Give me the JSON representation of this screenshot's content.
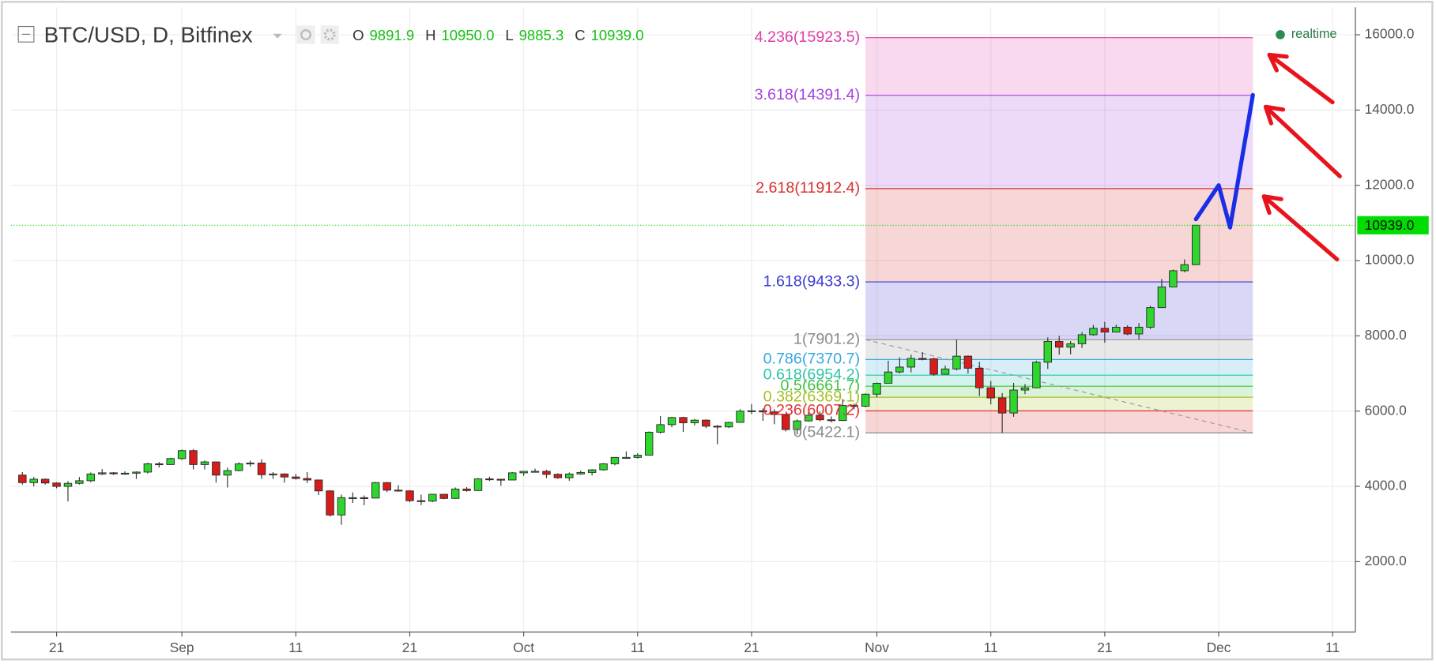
{
  "header": {
    "symbol": "BTC/USD, D, Bitfinex",
    "ohlc": [
      {
        "key": "O",
        "text": "9891.9"
      },
      {
        "key": "H",
        "text": "10950.0"
      },
      {
        "key": "L",
        "text": "9885.3"
      },
      {
        "key": "C",
        "text": "10939.0"
      }
    ],
    "status": "realtime"
  },
  "chart_data": {
    "type": "candlestick",
    "x": [
      "Aug 18",
      "Aug 19",
      "Aug 20",
      "Aug 21",
      "Aug 22",
      "Aug 23",
      "Aug 24",
      "Aug 25",
      "Aug 26",
      "Aug 27",
      "Aug 28",
      "Aug 29",
      "Aug 30",
      "Aug 31",
      "Sep 1",
      "Sep 2",
      "Sep 3",
      "Sep 4",
      "Sep 5",
      "Sep 6",
      "Sep 7",
      "Sep 8",
      "Sep 9",
      "Sep 10",
      "Sep 11",
      "Sep 12",
      "Sep 13",
      "Sep 14",
      "Sep 15",
      "Sep 16",
      "Sep 17",
      "Sep 18",
      "Sep 19",
      "Sep 20",
      "Sep 21",
      "Sep 22",
      "Sep 23",
      "Sep 24",
      "Sep 25",
      "Sep 26",
      "Sep 27",
      "Sep 28",
      "Sep 29",
      "Sep 30",
      "Oct 1",
      "Oct 2",
      "Oct 3",
      "Oct 4",
      "Oct 5",
      "Oct 6",
      "Oct 7",
      "Oct 8",
      "Oct 9",
      "Oct 10",
      "Oct 11",
      "Oct 12",
      "Oct 13",
      "Oct 14",
      "Oct 15",
      "Oct 16",
      "Oct 17",
      "Oct 18",
      "Oct 19",
      "Oct 20",
      "Oct 21",
      "Oct 22",
      "Oct 23",
      "Oct 24",
      "Oct 25",
      "Oct 26",
      "Oct 27",
      "Oct 28",
      "Oct 29",
      "Oct 30",
      "Oct 31",
      "Nov 1",
      "Nov 2",
      "Nov 3",
      "Nov 4",
      "Nov 5",
      "Nov 6",
      "Nov 7",
      "Nov 8",
      "Nov 9",
      "Nov 10",
      "Nov 11",
      "Nov 12",
      "Nov 13",
      "Nov 14",
      "Nov 15",
      "Nov 16",
      "Nov 17",
      "Nov 18",
      "Nov 19",
      "Nov 20",
      "Nov 21",
      "Nov 22",
      "Nov 23",
      "Nov 24",
      "Nov 25",
      "Nov 26",
      "Nov 27",
      "Nov 28",
      "Nov 29"
    ],
    "open": [
      4300,
      4100,
      4190,
      4090,
      4000,
      4080,
      4150,
      4330,
      4360,
      4350,
      4350,
      4380,
      4600,
      4580,
      4740,
      4950,
      4580,
      4650,
      4300,
      4420,
      4600,
      4620,
      4310,
      4330,
      4250,
      4210,
      4170,
      3880,
      3240,
      3700,
      3700,
      3690,
      4100,
      3900,
      3880,
      3620,
      3610,
      3790,
      3680,
      3930,
      3890,
      4200,
      4190,
      4170,
      4360,
      4400,
      4400,
      4320,
      4230,
      4330,
      4370,
      4440,
      4600,
      4770,
      4770,
      4830,
      5440,
      5640,
      5830,
      5690,
      5760,
      5600,
      5580,
      5700,
      6000,
      6010,
      5980,
      5910,
      5510,
      5740,
      5890,
      5770,
      5750,
      6150,
      6130,
      6450,
      6740,
      7040,
      7170,
      7400,
      7390,
      6980,
      7120,
      7460,
      7140,
      6620,
      6350,
      5950,
      6560,
      6620,
      7300,
      7850,
      7700,
      7790,
      8030,
      8200,
      8100,
      8230,
      8050,
      8230,
      8750,
      9300,
      9730,
      9891.9
    ],
    "high": [
      4380,
      4250,
      4210,
      4110,
      4140,
      4250,
      4370,
      4460,
      4380,
      4400,
      4400,
      4630,
      4650,
      4760,
      4980,
      4990,
      4690,
      4660,
      4500,
      4640,
      4680,
      4720,
      4380,
      4350,
      4330,
      4380,
      4180,
      3900,
      3780,
      3840,
      3760,
      4120,
      4120,
      4030,
      3900,
      3780,
      3800,
      3800,
      3970,
      3980,
      4220,
      4260,
      4200,
      4380,
      4410,
      4470,
      4440,
      4350,
      4370,
      4420,
      4460,
      4620,
      4780,
      4930,
      4880,
      5460,
      5870,
      5850,
      5850,
      5790,
      5780,
      5630,
      5720,
      6050,
      6190,
      6070,
      6050,
      5930,
      5780,
      5970,
      5990,
      5860,
      6320,
      6200,
      6470,
      6760,
      7340,
      7430,
      7500,
      7570,
      7420,
      7210,
      7901.2,
      7480,
      7310,
      6800,
      6480,
      6750,
      6720,
      7340,
      7960,
      8000,
      7860,
      8100,
      8290,
      8370,
      8300,
      8280,
      8340,
      8800,
      9510,
      9760,
      10030,
      10950
    ],
    "low": [
      4050,
      4000,
      4050,
      3950,
      3600,
      4050,
      4110,
      4300,
      4300,
      4310,
      4200,
      4340,
      4500,
      4570,
      4700,
      4450,
      4450,
      4100,
      3970,
      4400,
      4530,
      4200,
      4200,
      4100,
      4180,
      4090,
      3770,
      3200,
      2980,
      3560,
      3500,
      3680,
      3850,
      3860,
      3580,
      3500,
      3580,
      3660,
      3670,
      3860,
      3880,
      4140,
      4020,
      4160,
      4280,
      4370,
      4220,
      4200,
      4150,
      4310,
      4290,
      4420,
      4560,
      4730,
      4740,
      4820,
      5400,
      5570,
      5450,
      5620,
      5550,
      5120,
      5550,
      5690,
      5920,
      5740,
      5650,
      5460,
      5380,
      5720,
      5730,
      5700,
      5740,
      6050,
      6100,
      6370,
      6740,
      7000,
      7030,
      7350,
      6940,
      6970,
      7080,
      7000,
      6400,
      6180,
      5422.1,
      5850,
      6450,
      6610,
      7120,
      7500,
      7510,
      7680,
      8000,
      7820,
      8090,
      8020,
      7900,
      8180,
      8750,
      9290,
      9690,
      9885.3
    ],
    "close": [
      4100,
      4190,
      4090,
      4000,
      4080,
      4150,
      4330,
      4360,
      4350,
      4350,
      4380,
      4600,
      4580,
      4740,
      4950,
      4580,
      4650,
      4300,
      4420,
      4600,
      4620,
      4310,
      4330,
      4250,
      4210,
      4170,
      3880,
      3240,
      3700,
      3700,
      3690,
      4100,
      3900,
      3880,
      3620,
      3610,
      3790,
      3680,
      3930,
      3890,
      4200,
      4190,
      4170,
      4360,
      4400,
      4400,
      4320,
      4230,
      4330,
      4370,
      4440,
      4600,
      4770,
      4770,
      4830,
      5440,
      5640,
      5830,
      5690,
      5760,
      5600,
      5580,
      5700,
      6000,
      6010,
      5980,
      5910,
      5510,
      5740,
      5890,
      5770,
      5750,
      6150,
      6130,
      6450,
      6740,
      7040,
      7170,
      7400,
      7390,
      6980,
      7120,
      7460,
      7140,
      6620,
      6350,
      5950,
      6560,
      6620,
      7300,
      7850,
      7700,
      7790,
      8030,
      8200,
      8100,
      8230,
      8050,
      8230,
      8750,
      9300,
      9730,
      9891.9,
      10939
    ],
    "up_color": "#2ed62e",
    "down_color": "#d81c1c",
    "xlim": [
      "Aug 17",
      "Dec 13"
    ],
    "xticks": [
      {
        "value": "Aug 21",
        "label": "21"
      },
      {
        "value": "Sep 1",
        "label": "Sep"
      },
      {
        "value": "Sep 11",
        "label": "11"
      },
      {
        "value": "Sep 21",
        "label": "21"
      },
      {
        "value": "Oct 1",
        "label": "Oct"
      },
      {
        "value": "Oct 11",
        "label": "11"
      },
      {
        "value": "Oct 21",
        "label": "21"
      },
      {
        "value": "Nov 1",
        "label": "Nov"
      },
      {
        "value": "Nov 11",
        "label": "11"
      },
      {
        "value": "Nov 21",
        "label": "21"
      },
      {
        "value": "Dec 1",
        "label": "Dec"
      },
      {
        "value": "Dec 11",
        "label": "11"
      }
    ],
    "ylim": [
      130,
      16730
    ],
    "yticks": [
      {
        "value": 2000,
        "label": "2000.0"
      },
      {
        "value": 4000,
        "label": "4000.0"
      },
      {
        "value": 6000,
        "label": "6000.0"
      },
      {
        "value": 8000,
        "label": "8000.0"
      },
      {
        "value": 10000,
        "label": "10000.0"
      },
      {
        "value": 12000,
        "label": "12000.0"
      },
      {
        "value": 14000,
        "label": "14000.0"
      },
      {
        "value": 16000,
        "label": "16000.0"
      }
    ],
    "grid": true,
    "last_price": {
      "value": 10939,
      "label": "10939.0",
      "color": "#00dd00"
    },
    "fibonacci": {
      "start": "Oct 31",
      "end": "Dec 4",
      "levels": [
        {
          "value": 15923.5,
          "label": "4.236(15923.5)",
          "color": "#dd3fa6"
        },
        {
          "value": 14391.4,
          "label": "3.618(14391.4)",
          "color": "#a444dd"
        },
        {
          "value": 11912.4,
          "label": "2.618(11912.4)",
          "color": "#d63232"
        },
        {
          "value": 9433.3,
          "label": "1.618(9433.3)",
          "color": "#3a3ad2"
        },
        {
          "value": 7901.2,
          "label": "1(7901.2)",
          "color": "#8a8a8a"
        },
        {
          "value": 7370.7,
          "label": "0.786(7370.7)",
          "color": "#36a8e0"
        },
        {
          "value": 6954.2,
          "label": "0.618(6954.2)",
          "color": "#2ec4a6"
        },
        {
          "value": 6661.7,
          "label": "0.5(6661.7)",
          "color": "#42bf42"
        },
        {
          "value": 6369.1,
          "label": "0.382(6369.1)",
          "color": "#a6be22"
        },
        {
          "value": 6007.2,
          "label": "0.236(6007.2)",
          "color": "#e03434"
        },
        {
          "value": 5422.1,
          "label": "0(5422.1)",
          "color": "#8a8a8a"
        }
      ]
    },
    "trend_line": {
      "x": [
        "Oct 31",
        "Dec 4"
      ],
      "values": [
        7901.2,
        5422.1
      ]
    },
    "projection": {
      "x": [
        "Nov 29",
        "Dec 1",
        "Dec 2",
        "Dec 4"
      ],
      "values": [
        11100,
        12000,
        10880,
        14400
      ],
      "color": "#1a2ee8"
    }
  }
}
